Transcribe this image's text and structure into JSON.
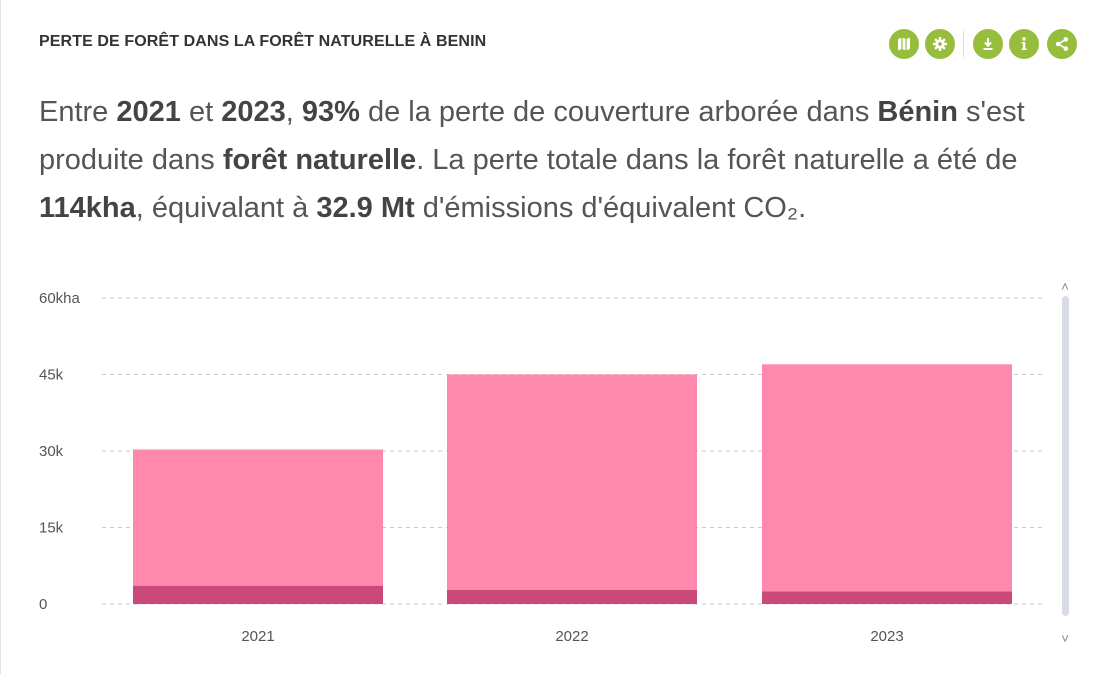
{
  "widget": {
    "title": "PERTE DE FORÊT DANS LA FORÊT NATURELLE À BENIN"
  },
  "toolbar": {
    "buttons": [
      {
        "icon": "map-icon",
        "label": "map"
      },
      {
        "icon": "gear-icon",
        "label": "settings"
      },
      {
        "icon": "download-icon",
        "label": "download"
      },
      {
        "icon": "info-icon",
        "label": "info"
      },
      {
        "icon": "share-icon",
        "label": "share"
      }
    ],
    "accent_color": "#97bd3d"
  },
  "sentence": {
    "t1": "Entre ",
    "b1": "2021",
    "t2": " et ",
    "b2": "2023",
    "t3": ", ",
    "b3": "93%",
    "t4": " de la perte de couverture arborée dans ",
    "b4": "Bénin",
    "t5": " s'est produite dans ",
    "b5": "forêt naturelle",
    "t6": ". La perte totale dans la forêt naturelle a été de ",
    "b6": "114kha",
    "t7": ", équivalant à ",
    "b7": "32.9 Mt",
    "t8": " d'émissions d'équivalent CO₂."
  },
  "chart_data": {
    "type": "bar",
    "stacked": true,
    "categories": [
      "2021",
      "2022",
      "2023"
    ],
    "series": [
      {
        "color": "#c94a7a",
        "values": [
          3600,
          2800,
          2500
        ]
      },
      {
        "color": "#ff88ad",
        "values": [
          26700,
          42200,
          44500
        ]
      }
    ],
    "yticks": [
      "0",
      "15k",
      "30k",
      "45k",
      "60kha"
    ],
    "ytick_values": [
      0,
      15000,
      30000,
      45000,
      60000
    ],
    "ylim": [
      0,
      60000
    ],
    "grid": true,
    "xlabel": "",
    "ylabel": ""
  },
  "scroll": {
    "up": "˄",
    "down": "˅"
  }
}
